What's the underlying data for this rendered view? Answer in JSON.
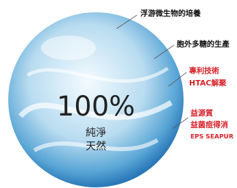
{
  "center": {
    "headline": "100%",
    "lines": [
      "純淨",
      "天然"
    ]
  },
  "labels": [
    {
      "lines": [
        "浮游微生物的培養"
      ]
    },
    {
      "lines": [
        "胞外多糖的生產"
      ]
    },
    {
      "lines": [
        "專利技術",
        "HTAC解聚"
      ]
    },
    {
      "lines": [
        "益源質",
        "益菌痘得消",
        "EPS SEAPUR"
      ]
    }
  ]
}
